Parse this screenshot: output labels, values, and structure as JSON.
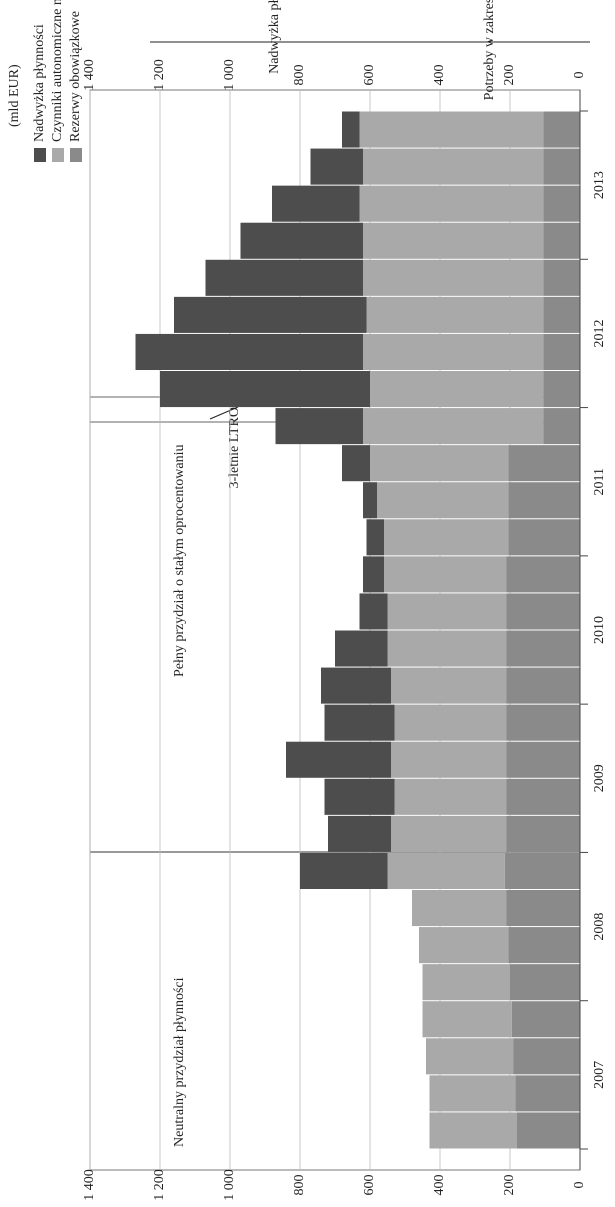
{
  "chart_data": {
    "type": "bar",
    "stacked": true,
    "unit": "(mld EUR)",
    "categories": [
      null,
      "2007",
      null,
      null,
      null,
      "2008",
      null,
      null,
      null,
      "2009",
      null,
      null,
      null,
      "2010",
      null,
      null,
      null,
      "2011",
      null,
      null,
      null,
      "2012",
      null,
      null,
      null,
      "2013",
      null,
      null
    ],
    "series": [
      {
        "name": "Nadwyżka płynności",
        "color": "#4d4d4d",
        "values": [
          0,
          0,
          0,
          0,
          0,
          0,
          0,
          250,
          180,
          200,
          300,
          200,
          200,
          150,
          80,
          60,
          50,
          40,
          80,
          250,
          600,
          650,
          550,
          450,
          350,
          250,
          150,
          50
        ]
      },
      {
        "name": "Czynniki autonomiczne netto",
        "color": "#a9a9a9",
        "values": [
          250,
          245,
          250,
          255,
          250,
          255,
          270,
          335,
          330,
          320,
          330,
          320,
          330,
          340,
          340,
          350,
          355,
          375,
          395,
          515,
          495,
          515,
          505,
          515,
          515,
          525,
          515,
          525
        ]
      },
      {
        "name": "Rezerwy obowiązkowe",
        "color": "#8a8a8a",
        "values": [
          180,
          185,
          190,
          195,
          200,
          205,
          210,
          215,
          210,
          210,
          210,
          210,
          210,
          210,
          210,
          210,
          205,
          205,
          205,
          105,
          105,
          105,
          105,
          105,
          105,
          105,
          105,
          105
        ]
      }
    ],
    "ylim": [
      0,
      1400
    ],
    "yticks": [
      0,
      200,
      400,
      600,
      800,
      {
        "value": 1000,
        "label": "1 000"
      },
      {
        "value": 1200,
        "label": "1 200"
      },
      {
        "value": 1400,
        "label": "1 400"
      }
    ],
    "grid": true,
    "annotations": [
      "Neutralny przydział płynności",
      "Pełny przydział o stałym oprocentowaniu",
      "3-letnie LTRO"
    ],
    "side_labels": [
      "Nadwyżka płynności",
      "Potrzeby w zakresie płynności"
    ]
  }
}
